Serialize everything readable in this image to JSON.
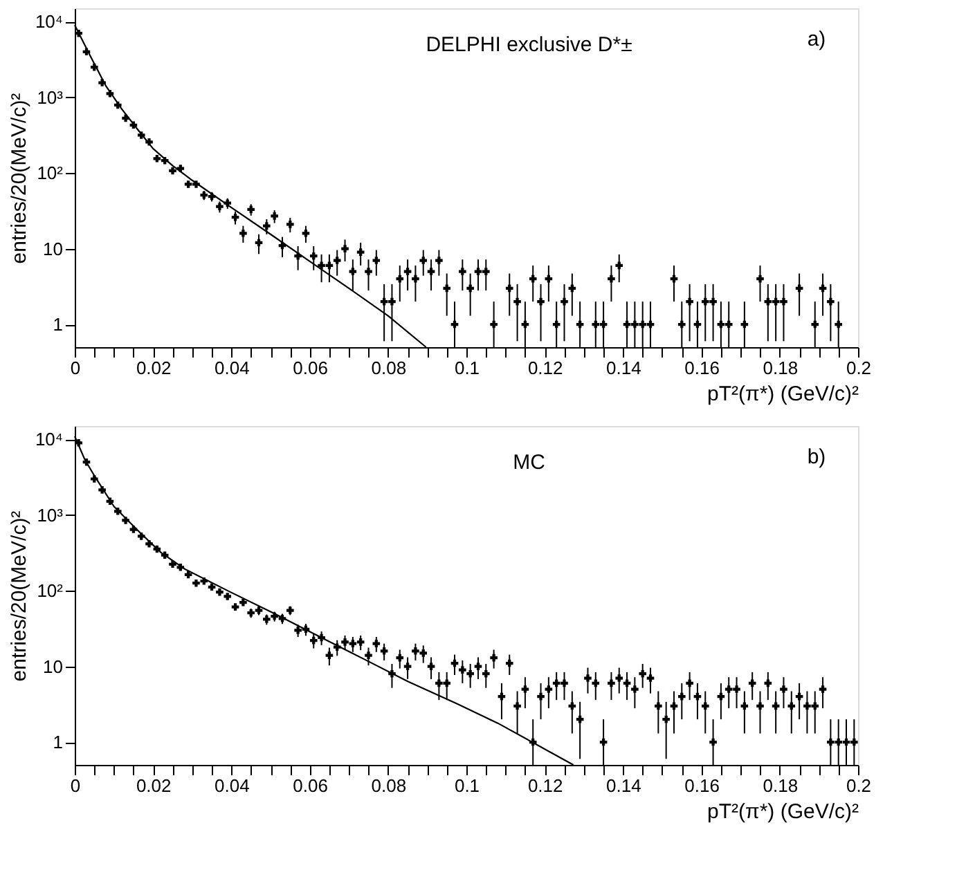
{
  "chart_data": [
    {
      "type": "scatter",
      "xlabel": "pT²(π*) (GeV/c)²",
      "ylabel": "entries/20(MeV/c)²",
      "log": "y",
      "annotations": [
        "DELPHI exclusive D*±",
        "a)"
      ],
      "xlim": [
        0,
        0.2
      ],
      "ylim": [
        0.5,
        15000
      ],
      "xticks": [
        0,
        {
          "value": 0.005,
          "label": null
        },
        {
          "value": 0.01,
          "label": null
        },
        {
          "value": 0.015,
          "label": null
        },
        0.02,
        {
          "value": 0.025,
          "label": null
        },
        {
          "value": 0.03,
          "label": null
        },
        {
          "value": 0.035,
          "label": null
        },
        0.04,
        {
          "value": 0.045,
          "label": null
        },
        {
          "value": 0.05,
          "label": null
        },
        {
          "value": 0.055,
          "label": null
        },
        0.06,
        {
          "value": 0.065,
          "label": null
        },
        {
          "value": 0.07,
          "label": null
        },
        {
          "value": 0.075,
          "label": null
        },
        0.08,
        {
          "value": 0.085,
          "label": null
        },
        {
          "value": 0.09,
          "label": null
        },
        {
          "value": 0.095,
          "label": null
        },
        0.1,
        {
          "value": 0.105,
          "label": null
        },
        {
          "value": 0.11,
          "label": null
        },
        {
          "value": 0.115,
          "label": null
        },
        0.12,
        {
          "value": 0.125,
          "label": null
        },
        {
          "value": 0.13,
          "label": null
        },
        {
          "value": 0.135,
          "label": null
        },
        0.14,
        {
          "value": 0.145,
          "label": null
        },
        {
          "value": 0.15,
          "label": null
        },
        {
          "value": 0.155,
          "label": null
        },
        0.16,
        {
          "value": 0.165,
          "label": null
        },
        {
          "value": 0.17,
          "label": null
        },
        {
          "value": 0.175,
          "label": null
        },
        0.18,
        {
          "value": 0.185,
          "label": null
        },
        {
          "value": 0.19,
          "label": null
        },
        {
          "value": 0.195,
          "label": null
        },
        0.2
      ],
      "yticks": [
        1,
        10,
        {
          "value": 100,
          "label": "10²"
        },
        {
          "value": 1000,
          "label": "10³"
        },
        {
          "value": 10000,
          "label": "10⁴"
        }
      ],
      "series": [
        {
          "color": "#000000",
          "marker": "cross",
          "x": [
            0.001,
            0.003,
            0.005,
            0.007,
            0.009,
            0.011,
            0.013,
            0.015,
            0.017,
            0.019,
            0.021,
            0.023,
            0.025,
            0.027,
            0.029,
            0.031,
            0.033,
            0.035,
            0.037,
            0.039,
            0.041,
            0.043,
            0.045,
            0.047,
            0.049,
            0.051,
            0.053,
            0.055,
            0.057,
            0.059,
            0.061,
            0.063,
            0.065,
            0.067,
            0.069,
            0.071,
            0.073,
            0.075,
            0.077,
            0.079,
            0.081,
            0.083,
            0.085,
            0.087,
            0.089,
            0.091,
            0.093,
            0.095,
            0.097,
            0.099,
            0.101,
            0.103,
            0.105,
            0.107,
            0.111,
            0.113,
            0.115,
            0.117,
            0.119,
            0.121,
            0.123,
            0.125,
            0.127,
            0.129,
            0.133,
            0.135,
            0.137,
            0.139,
            0.141,
            0.143,
            0.145,
            0.147,
            0.153,
            0.155,
            0.157,
            0.159,
            0.161,
            0.163,
            0.165,
            0.167,
            0.171,
            0.175,
            0.177,
            0.179,
            0.181,
            0.185,
            0.189,
            0.191,
            0.193,
            0.195
          ],
          "values": [
            7000,
            4000,
            2500,
            1560,
            1120,
            790,
            530,
            430,
            316,
            257,
            155,
            146,
            107,
            115,
            71,
            71,
            51,
            49,
            36,
            40,
            26,
            16,
            33,
            12,
            20,
            27,
            11,
            21,
            8,
            16,
            8,
            6,
            6,
            7,
            10,
            5,
            9,
            5,
            7,
            2,
            2,
            4,
            5,
            4,
            7,
            5,
            7,
            3,
            1,
            5,
            3,
            5,
            5,
            1,
            3,
            2,
            1,
            4,
            2,
            4,
            1,
            2,
            3,
            1,
            1,
            1,
            4,
            6,
            1,
            1,
            1,
            1,
            4,
            1,
            2,
            1,
            2,
            2,
            1,
            1,
            1,
            4,
            2,
            2,
            2,
            3,
            1,
            3,
            2,
            1
          ],
          "errors": [
            null,
            null,
            null,
            null,
            null,
            null,
            null,
            null,
            null,
            null,
            null,
            null,
            null,
            null,
            null,
            null,
            [
              43.9,
              58.1
            ],
            [
              42,
              56
            ],
            [
              30,
              42
            ],
            [
              33.7,
              46.3
            ],
            [
              20.9,
              31.1
            ],
            [
              12,
              20
            ],
            [
              27.3,
              38.7
            ],
            [
              8.5,
              15.5
            ],
            [
              15.5,
              24.5
            ],
            [
              21.8,
              32.2
            ],
            [
              7.7,
              14.3
            ],
            [
              16.4,
              25.6
            ],
            [
              5.2,
              10.8
            ],
            [
              12,
              20
            ],
            [
              5.2,
              10.8
            ],
            [
              3.6,
              8.4
            ],
            [
              3.6,
              8.4
            ],
            [
              4.4,
              9.6
            ],
            [
              6.8,
              13.2
            ],
            [
              2.8,
              7.2
            ],
            [
              6,
              12
            ],
            [
              2.8,
              7.2
            ],
            [
              4.4,
              9.6
            ],
            [
              0.6,
              3.4
            ],
            [
              0.6,
              3.4
            ],
            [
              2,
              6
            ],
            [
              2.8,
              7.2
            ],
            [
              2,
              6
            ],
            [
              4.4,
              9.6
            ],
            [
              2.8,
              7.2
            ],
            [
              4.4,
              9.6
            ],
            [
              1.3,
              4.7
            ],
            [
              0.5,
              2
            ],
            [
              2.8,
              7.2
            ],
            [
              1.3,
              4.7
            ],
            [
              2.8,
              7.2
            ],
            [
              2.8,
              7.2
            ],
            [
              0.5,
              2
            ],
            [
              1.3,
              4.7
            ],
            [
              0.6,
              3.4
            ],
            [
              0.5,
              2
            ],
            [
              2,
              6
            ],
            [
              0.6,
              3.4
            ],
            [
              2,
              6
            ],
            [
              0.5,
              2
            ],
            [
              0.6,
              3.4
            ],
            [
              1.3,
              4.7
            ],
            [
              0.5,
              2
            ],
            [
              0.5,
              2
            ],
            [
              0.5,
              2
            ],
            [
              2,
              6
            ],
            [
              3.6,
              8.4
            ],
            [
              0.5,
              2
            ],
            [
              0.5,
              2
            ],
            [
              0.5,
              2
            ],
            [
              0.5,
              2
            ],
            [
              2,
              6
            ],
            [
              0.5,
              2
            ],
            [
              0.6,
              3.4
            ],
            [
              0.5,
              2
            ],
            [
              0.6,
              3.4
            ],
            [
              0.6,
              3.4
            ],
            [
              0.5,
              2
            ],
            [
              0.5,
              2
            ],
            [
              0.5,
              2
            ],
            [
              2,
              6
            ],
            [
              0.6,
              3.4
            ],
            [
              0.6,
              3.4
            ],
            [
              0.6,
              3.4
            ],
            [
              1.3,
              4.7
            ],
            [
              0.5,
              2
            ],
            [
              1.3,
              4.7
            ],
            [
              0.6,
              3.4
            ],
            [
              0.5,
              2
            ]
          ]
        },
        {
          "type": "line",
          "color": "#000000",
          "marker": "none",
          "line_style": "solid",
          "x": [
            0,
            0.004,
            0.008,
            0.012,
            0.016,
            0.02,
            0.025,
            0.03,
            0.04,
            0.05,
            0.06,
            0.07,
            0.08,
            0.0897
          ],
          "values": [
            9000,
            3500,
            1400,
            700,
            380,
            210,
            125,
            80,
            35,
            15.5,
            6.8,
            3.0,
            1.3,
            0.5
          ]
        }
      ]
    },
    {
      "type": "scatter",
      "xlabel": "pT²(π*) (GeV/c)²",
      "ylabel": "entries/20(MeV/c)²",
      "log": "y",
      "annotations": [
        "MC",
        "b)"
      ],
      "xlim": [
        0,
        0.2
      ],
      "ylim": [
        0.5,
        15000
      ],
      "xticks": [
        0,
        {
          "value": 0.005,
          "label": null
        },
        {
          "value": 0.01,
          "label": null
        },
        {
          "value": 0.015,
          "label": null
        },
        0.02,
        {
          "value": 0.025,
          "label": null
        },
        {
          "value": 0.03,
          "label": null
        },
        {
          "value": 0.035,
          "label": null
        },
        0.04,
        {
          "value": 0.045,
          "label": null
        },
        {
          "value": 0.05,
          "label": null
        },
        {
          "value": 0.055,
          "label": null
        },
        0.06,
        {
          "value": 0.065,
          "label": null
        },
        {
          "value": 0.07,
          "label": null
        },
        {
          "value": 0.075,
          "label": null
        },
        0.08,
        {
          "value": 0.085,
          "label": null
        },
        {
          "value": 0.09,
          "label": null
        },
        {
          "value": 0.095,
          "label": null
        },
        0.1,
        {
          "value": 0.105,
          "label": null
        },
        {
          "value": 0.11,
          "label": null
        },
        {
          "value": 0.115,
          "label": null
        },
        0.12,
        {
          "value": 0.125,
          "label": null
        },
        {
          "value": 0.13,
          "label": null
        },
        {
          "value": 0.135,
          "label": null
        },
        0.14,
        {
          "value": 0.145,
          "label": null
        },
        {
          "value": 0.15,
          "label": null
        },
        {
          "value": 0.155,
          "label": null
        },
        0.16,
        {
          "value": 0.165,
          "label": null
        },
        {
          "value": 0.17,
          "label": null
        },
        {
          "value": 0.175,
          "label": null
        },
        0.18,
        {
          "value": 0.185,
          "label": null
        },
        {
          "value": 0.19,
          "label": null
        },
        {
          "value": 0.195,
          "label": null
        },
        0.2
      ],
      "yticks": [
        1,
        10,
        {
          "value": 100,
          "label": "10²"
        },
        {
          "value": 1000,
          "label": "10³"
        },
        {
          "value": 10000,
          "label": "10⁴"
        }
      ],
      "series": [
        {
          "color": "#000000",
          "marker": "cross",
          "x": [
            0.001,
            0.003,
            0.005,
            0.007,
            0.009,
            0.011,
            0.013,
            0.015,
            0.017,
            0.019,
            0.021,
            0.023,
            0.025,
            0.027,
            0.029,
            0.031,
            0.033,
            0.035,
            0.037,
            0.039,
            0.041,
            0.043,
            0.045,
            0.047,
            0.049,
            0.051,
            0.053,
            0.055,
            0.057,
            0.059,
            0.061,
            0.063,
            0.065,
            0.067,
            0.069,
            0.071,
            0.073,
            0.075,
            0.077,
            0.079,
            0.081,
            0.083,
            0.085,
            0.087,
            0.089,
            0.091,
            0.093,
            0.095,
            0.097,
            0.099,
            0.101,
            0.103,
            0.105,
            0.107,
            0.109,
            0.111,
            0.113,
            0.115,
            0.117,
            0.119,
            0.121,
            0.123,
            0.125,
            0.127,
            0.129,
            0.131,
            0.133,
            0.135,
            0.137,
            0.139,
            0.141,
            0.143,
            0.145,
            0.147,
            0.149,
            0.151,
            0.153,
            0.155,
            0.157,
            0.159,
            0.161,
            0.163,
            0.165,
            0.167,
            0.169,
            0.171,
            0.173,
            0.175,
            0.177,
            0.179,
            0.181,
            0.183,
            0.185,
            0.187,
            0.189,
            0.191,
            0.193,
            0.195,
            0.197,
            0.199
          ],
          "values": [
            9000,
            5000,
            3000,
            2150,
            1520,
            1120,
            850,
            645,
            525,
            417,
            355,
            295,
            224,
            204,
            163,
            126,
            134,
            112,
            96,
            84,
            61,
            70,
            51,
            55,
            42,
            46,
            43,
            55,
            30,
            31,
            22,
            24,
            14,
            18,
            21,
            20,
            21,
            14,
            20,
            16,
            8,
            13,
            10,
            16,
            15,
            10,
            6,
            6,
            11,
            9,
            8,
            10,
            8,
            13,
            4,
            11,
            3,
            5,
            1,
            4,
            5,
            6,
            6,
            3,
            2,
            7,
            6,
            1,
            6,
            7,
            6,
            5,
            8,
            7,
            3,
            2,
            3,
            4,
            6,
            4,
            3,
            1,
            4,
            5,
            5,
            3,
            6,
            3,
            6,
            3,
            5,
            3,
            4,
            3,
            3,
            5,
            1,
            1,
            1,
            1
          ],
          "errors": [
            null,
            null,
            null,
            null,
            null,
            null,
            null,
            null,
            null,
            null,
            null,
            null,
            null,
            null,
            null,
            null,
            null,
            null,
            null,
            null,
            null,
            null,
            [
              43.9,
              58.1
            ],
            [
              47.6,
              62.4
            ],
            [
              35.5,
              48.5
            ],
            [
              39.2,
              52.8
            ],
            [
              36.4,
              49.6
            ],
            [
              47.6,
              62.4
            ],
            [
              24.5,
              35.5
            ],
            [
              25.4,
              36.6
            ],
            [
              17.3,
              26.7
            ],
            [
              19.1,
              28.9
            ],
            [
              10.3,
              17.7
            ],
            [
              13.8,
              22.2
            ],
            [
              16.4,
              25.6
            ],
            [
              15.5,
              24.5
            ],
            [
              16.4,
              25.6
            ],
            [
              10.3,
              17.7
            ],
            [
              15.5,
              24.5
            ],
            [
              12,
              20
            ],
            [
              5.2,
              10.8
            ],
            [
              9.4,
              16.6
            ],
            [
              6.8,
              13.2
            ],
            [
              12,
              20
            ],
            [
              11.1,
              18.9
            ],
            [
              6.8,
              13.2
            ],
            [
              3.6,
              8.4
            ],
            [
              3.6,
              8.4
            ],
            [
              7.7,
              14.3
            ],
            [
              6,
              12
            ],
            [
              5.2,
              10.8
            ],
            [
              6.8,
              13.2
            ],
            [
              5.2,
              10.8
            ],
            [
              9.4,
              16.6
            ],
            [
              2,
              6
            ],
            [
              7.7,
              14.3
            ],
            [
              1.3,
              4.7
            ],
            [
              2.8,
              7.2
            ],
            [
              0.5,
              2
            ],
            [
              2,
              6
            ],
            [
              2.8,
              7.2
            ],
            [
              3.6,
              8.4
            ],
            [
              3.6,
              8.4
            ],
            [
              1.3,
              4.7
            ],
            [
              0.6,
              3.4
            ],
            [
              4.4,
              9.6
            ],
            [
              3.6,
              8.4
            ],
            [
              0.5,
              2
            ],
            [
              3.6,
              8.4
            ],
            [
              4.4,
              9.6
            ],
            [
              3.6,
              8.4
            ],
            [
              2.8,
              7.2
            ],
            [
              5.2,
              10.8
            ],
            [
              4.4,
              9.6
            ],
            [
              1.3,
              4.7
            ],
            [
              0.6,
              3.4
            ],
            [
              1.3,
              4.7
            ],
            [
              2,
              6
            ],
            [
              3.6,
              8.4
            ],
            [
              2,
              6
            ],
            [
              1.3,
              4.7
            ],
            [
              0.5,
              2
            ],
            [
              2,
              6
            ],
            [
              2.8,
              7.2
            ],
            [
              2.8,
              7.2
            ],
            [
              1.3,
              4.7
            ],
            [
              3.6,
              8.4
            ],
            [
              1.3,
              4.7
            ],
            [
              3.6,
              8.4
            ],
            [
              1.3,
              4.7
            ],
            [
              2.8,
              7.2
            ],
            [
              1.3,
              4.7
            ],
            [
              2,
              6
            ],
            [
              1.3,
              4.7
            ],
            [
              1.3,
              4.7
            ],
            [
              2.8,
              7.2
            ],
            [
              0.5,
              2
            ],
            [
              0.5,
              2
            ],
            [
              0.5,
              2
            ],
            [
              0.5,
              2
            ]
          ]
        },
        {
          "type": "line",
          "color": "#000000",
          "marker": "none",
          "line_style": "solid",
          "x": [
            0,
            0.0025,
            0.0051,
            0.01,
            0.0166,
            0.022,
            0.028,
            0.0394,
            0.0509,
            0.0623,
            0.0737,
            0.0851,
            0.0966,
            0.108,
            0.1273
          ],
          "values": [
            11000,
            5500,
            3250,
            1300,
            590,
            320,
            195,
            98,
            50,
            25,
            12.6,
            6.3,
            3.4,
            1.78,
            0.5
          ]
        }
      ]
    }
  ]
}
